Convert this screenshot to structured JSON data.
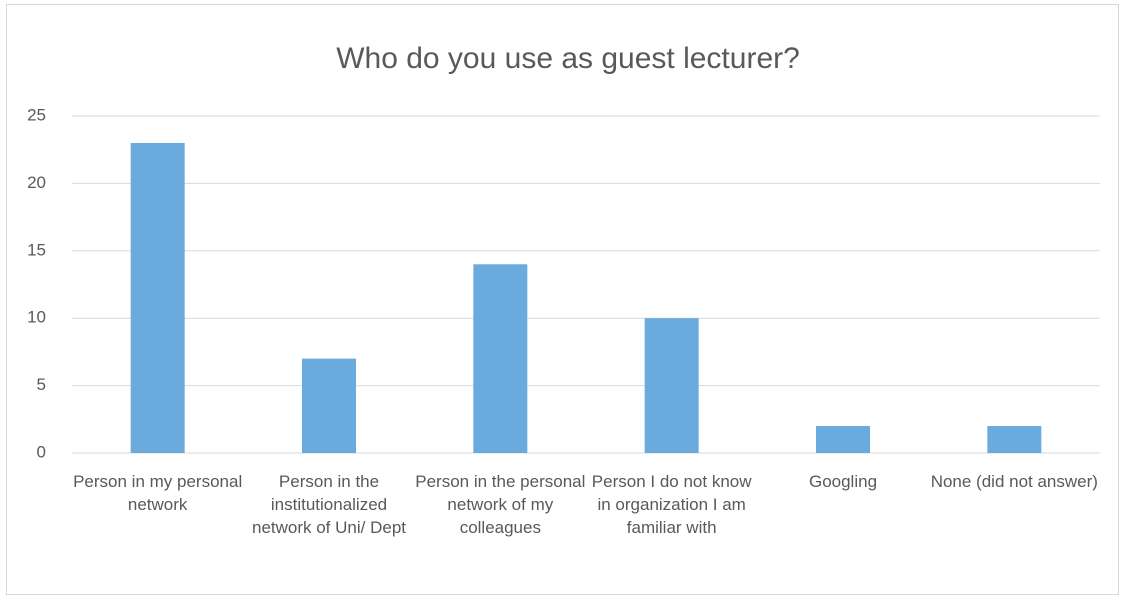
{
  "chart_data": {
    "type": "bar",
    "title": "Who do you use as guest lecturer?",
    "categories": [
      "Person in my personal network",
      "Person in the institutionalized network of Uni/ Dept",
      "Person in the personal network of my colleagues",
      "Person I do not know in organization I am familiar with",
      "Googling",
      "None (did not answer)"
    ],
    "values": [
      23,
      7,
      14,
      10,
      2,
      2
    ],
    "color": "#6aaadc",
    "ylim": [
      0,
      25
    ],
    "yticks": [
      0,
      5,
      10,
      15,
      20,
      25
    ],
    "grid": true
  }
}
